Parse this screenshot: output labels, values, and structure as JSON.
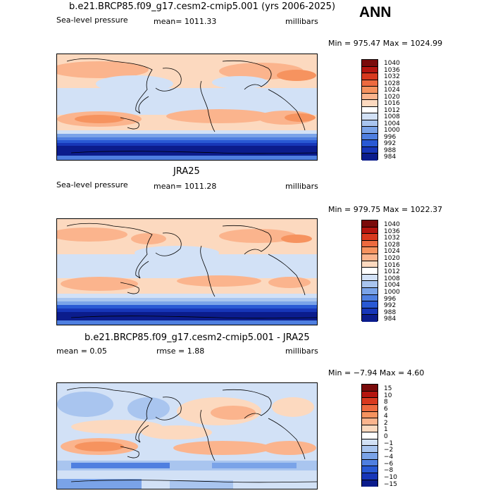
{
  "season": "ANN",
  "panels": [
    {
      "title": "b.e21.BRCP85.f09_g17.cesm2-cmip5.001 (yrs 2006-2025)",
      "variable": "Sea-level pressure",
      "mean_text": "mean= 1011.33",
      "units": "millibars",
      "minmax": "Min = 975.47 Max = 1024.99",
      "colorbar_labels": [
        "1040",
        "1036",
        "1032",
        "1028",
        "1024",
        "1020",
        "1016",
        "1012",
        "1008",
        "1004",
        "1000",
        "996",
        "992",
        "988",
        "984"
      ]
    },
    {
      "title": "JRA25",
      "variable": "Sea-level pressure",
      "mean_text": "mean= 1011.28",
      "units": "millibars",
      "minmax": "Min = 979.75 Max = 1022.37",
      "colorbar_labels": [
        "1040",
        "1036",
        "1032",
        "1028",
        "1024",
        "1020",
        "1016",
        "1012",
        "1008",
        "1004",
        "1000",
        "996",
        "992",
        "988",
        "984"
      ]
    },
    {
      "title": "b.e21.BRCP85.f09_g17.cesm2-cmip5.001 - JRA25",
      "mean_text": "mean =    0.05",
      "rmse_text": "rmse =    1.88",
      "units": "millibars",
      "minmax": "Min =  −7.94 Max =    4.60",
      "colorbar_labels": [
        "15",
        "10",
        "8",
        "6",
        "4",
        "2",
        "1",
        "0",
        "−1",
        "−2",
        "−4",
        "−6",
        "−8",
        "−10",
        "−15"
      ]
    }
  ],
  "colors": {
    "abs_scale": [
      "#7a0b0b",
      "#b4150f",
      "#d8391e",
      "#ed6a3f",
      "#f6935f",
      "#fbb48d",
      "#fcd9bf",
      "#ffffff",
      "#d2e1f6",
      "#a9c5ef",
      "#7aa3e8",
      "#4f7fe0",
      "#2959d4",
      "#1736b8",
      "#0b1c8c",
      "#050f60"
    ],
    "diff_scale": [
      "#7a0b0b",
      "#b4150f",
      "#d8391e",
      "#ed6a3f",
      "#f6935f",
      "#fbb48d",
      "#fcd9bf",
      "#ffffff",
      "#d2e1f6",
      "#a9c5ef",
      "#7aa3e8",
      "#4f7fe0",
      "#2959d4",
      "#1736b8",
      "#0b1c8c",
      "#050f60"
    ]
  }
}
